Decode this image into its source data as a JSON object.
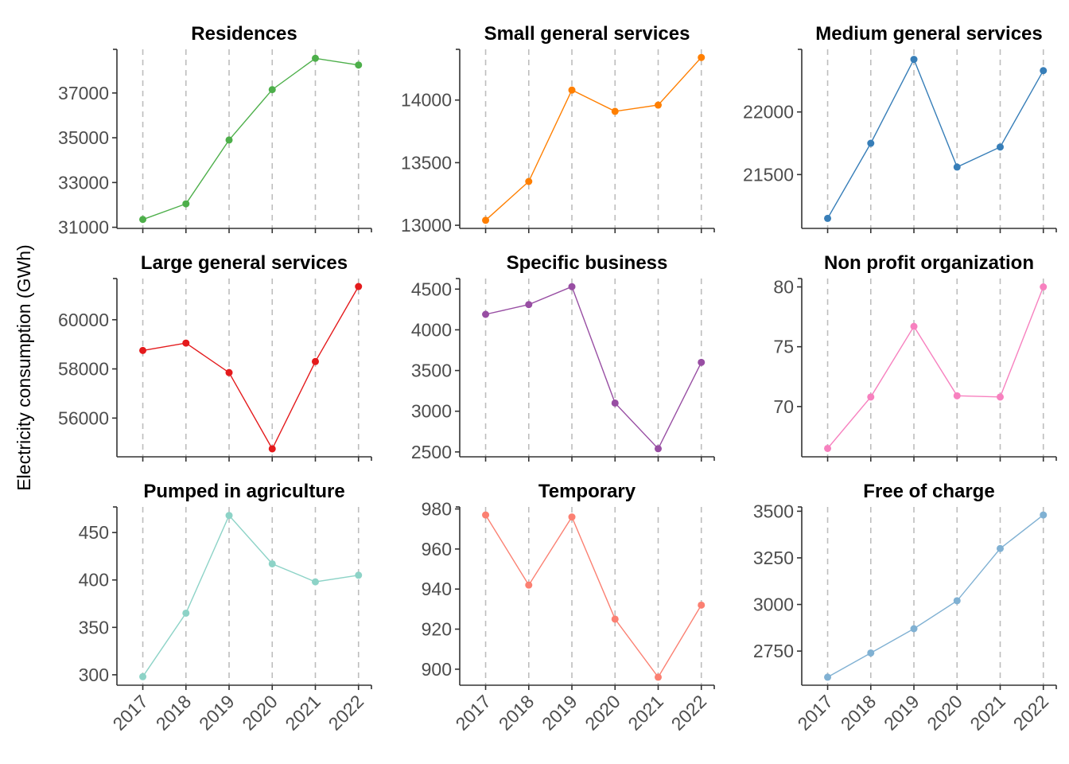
{
  "ylabel": "Electricity consumption (GWh)",
  "chart_data": [
    {
      "type": "line",
      "title": "Residences",
      "color": "#4daf4a",
      "x": [
        2017,
        2018,
        2019,
        2020,
        2021,
        2022
      ],
      "values": [
        31350,
        32050,
        34900,
        37150,
        38550,
        38250
      ],
      "ylim": [
        30950,
        38950
      ],
      "yticks": [
        31000,
        33000,
        35000,
        37000
      ]
    },
    {
      "type": "line",
      "title": "Small general services",
      "color": "#ff7f00",
      "x": [
        2017,
        2018,
        2019,
        2020,
        2021,
        2022
      ],
      "values": [
        13040,
        13350,
        14080,
        13910,
        13960,
        14340
      ],
      "ylim": [
        12975,
        14405
      ],
      "yticks": [
        13000,
        13500,
        14000
      ]
    },
    {
      "type": "line",
      "title": "Medium general services",
      "color": "#377eb8",
      "x": [
        2017,
        2018,
        2019,
        2020,
        2021,
        2022
      ],
      "values": [
        21150,
        21750,
        22420,
        21560,
        21720,
        22330
      ],
      "ylim": [
        21070,
        22500
      ],
      "yticks": [
        21500,
        22000
      ]
    },
    {
      "type": "line",
      "title": "Large general services",
      "color": "#e41a1c",
      "x": [
        2017,
        2018,
        2019,
        2020,
        2021,
        2022
      ],
      "values": [
        58750,
        59050,
        57850,
        54750,
        58300,
        61350
      ],
      "ylim": [
        54425,
        61675
      ],
      "yticks": [
        56000,
        58000,
        60000
      ]
    },
    {
      "type": "line",
      "title": "Specific business",
      "color": "#984ea3",
      "x": [
        2017,
        2018,
        2019,
        2020,
        2021,
        2022
      ],
      "values": [
        4190,
        4310,
        4530,
        3100,
        2540,
        3600
      ],
      "ylim": [
        2440,
        4630
      ],
      "yticks": [
        2500,
        3000,
        3500,
        4000,
        4500
      ]
    },
    {
      "type": "line",
      "title": "Non profit organization",
      "color": "#f781bf",
      "x": [
        2017,
        2018,
        2019,
        2020,
        2021,
        2022
      ],
      "values": [
        66.5,
        70.8,
        76.7,
        70.9,
        70.8,
        80
      ],
      "ylim": [
        65.8,
        80.7
      ],
      "yticks": [
        70,
        75,
        80
      ]
    },
    {
      "type": "line",
      "title": "Pumped in agriculture",
      "color": "#8dd3c7",
      "x": [
        2017,
        2018,
        2019,
        2020,
        2021,
        2022
      ],
      "values": [
        298,
        365,
        468,
        417,
        398,
        405
      ],
      "ylim": [
        289,
        477
      ],
      "yticks": [
        300,
        350,
        400,
        450
      ]
    },
    {
      "type": "line",
      "title": "Temporary",
      "color": "#fb8072",
      "x": [
        2017,
        2018,
        2019,
        2020,
        2021,
        2022
      ],
      "values": [
        977,
        942,
        976,
        925,
        896,
        932
      ],
      "ylim": [
        892,
        981
      ],
      "yticks": [
        900,
        920,
        940,
        960,
        980
      ]
    },
    {
      "type": "line",
      "title": "Free of charge",
      "color": "#80b1d3",
      "x": [
        2017,
        2018,
        2019,
        2020,
        2021,
        2022
      ],
      "values": [
        2610,
        2740,
        2870,
        3020,
        3300,
        3480
      ],
      "ylim": [
        2567,
        3523
      ],
      "yticks": [
        2750,
        3000,
        3250,
        3500
      ]
    }
  ]
}
